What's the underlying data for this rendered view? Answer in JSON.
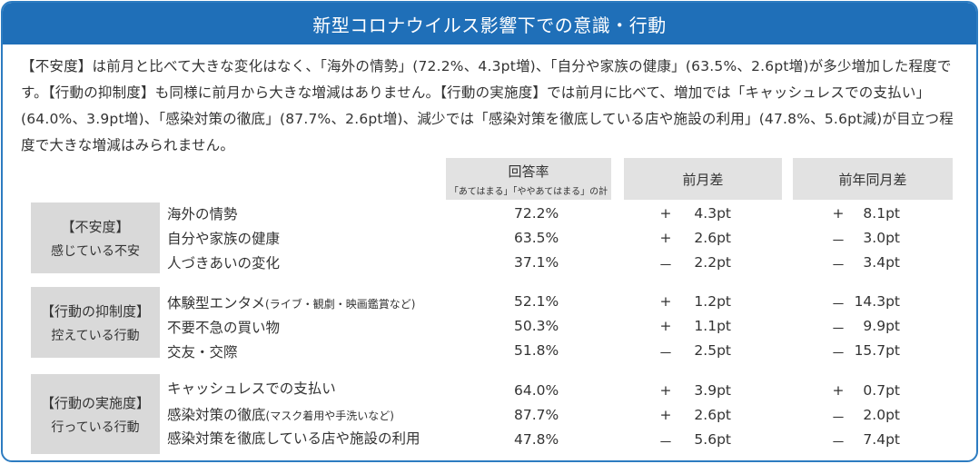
{
  "title": "新型コロナウイルス影響下での意識・行動",
  "summary": "【不安度】は前月と比べて大きな変化はなく、「海外の情勢」(72.2%、4.3pt増)、「自分や家族の健康」(63.5%、2.6pt増)が多少増加した程度です。【行動の抑制度】も同様に前月から大きな増減はありません。【行動の実施度】では前月に比べて、増加では「キャッシュレスでの支払い」(64.0%、3.9pt増)、「感染対策の徹底」(87.7%、2.6pt増)、減少では「感染対策を徹底している店や施設の利用」(47.8%、5.6pt減)が目立つ程度で大きな増減はみられません。",
  "headers": {
    "rate": "回答率",
    "rate_sub": "「あてはまる」「ややあてはまる」の計",
    "mom": "前月差",
    "yoy": "前年同月差"
  },
  "groups": [
    {
      "title": "【不安度】",
      "sub": "感じている不安",
      "rows": [
        {
          "item": "海外の情勢",
          "note": "",
          "rate": "72.2%",
          "mom_sign": "+",
          "mom": "4.3pt",
          "yoy_sign": "+",
          "yoy": "8.1pt"
        },
        {
          "item": "自分や家族の健康",
          "note": "",
          "rate": "63.5%",
          "mom_sign": "+",
          "mom": "2.6pt",
          "yoy_sign": "－",
          "yoy": "3.0pt"
        },
        {
          "item": "人づきあいの変化",
          "note": "",
          "rate": "37.1%",
          "mom_sign": "－",
          "mom": "2.2pt",
          "yoy_sign": "－",
          "yoy": "3.4pt"
        }
      ]
    },
    {
      "title": "【行動の抑制度】",
      "sub": "控えている行動",
      "rows": [
        {
          "item": "体験型エンタメ",
          "note": "(ライブ・観劇・映画鑑賞など)",
          "rate": "52.1%",
          "mom_sign": "+",
          "mom": "1.2pt",
          "yoy_sign": "－",
          "yoy": "14.3pt"
        },
        {
          "item": "不要不急の買い物",
          "note": "",
          "rate": "50.3%",
          "mom_sign": "+",
          "mom": "1.1pt",
          "yoy_sign": "－",
          "yoy": "9.9pt"
        },
        {
          "item": "交友・交際",
          "note": "",
          "rate": "51.8%",
          "mom_sign": "－",
          "mom": "2.5pt",
          "yoy_sign": "－",
          "yoy": "15.7pt"
        }
      ]
    },
    {
      "title": "【行動の実施度】",
      "sub": "行っている行動",
      "rows": [
        {
          "item": "キャッシュレスでの支払い",
          "note": "",
          "rate": "64.0%",
          "mom_sign": "+",
          "mom": "3.9pt",
          "yoy_sign": "+",
          "yoy": "0.7pt"
        },
        {
          "item": "感染対策の徹底",
          "note": "(マスク着用や手洗いなど)",
          "rate": "87.7%",
          "mom_sign": "+",
          "mom": "2.6pt",
          "yoy_sign": "－",
          "yoy": "2.0pt"
        },
        {
          "item": "感染対策を徹底している店や施設の利用",
          "note": "",
          "rate": "47.8%",
          "mom_sign": "－",
          "mom": "5.6pt",
          "yoy_sign": "－",
          "yoy": "7.4pt"
        }
      ]
    }
  ]
}
